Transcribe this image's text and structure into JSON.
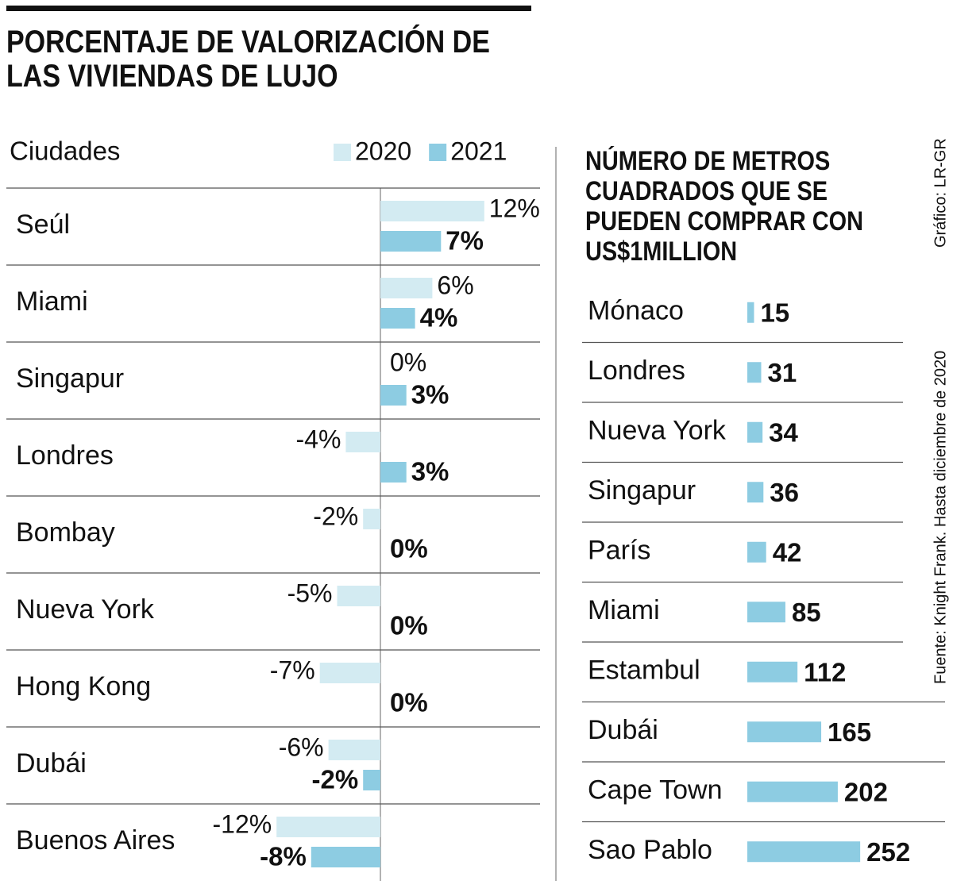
{
  "chart_data": [
    {
      "type": "bar",
      "title": "PORCENTAJE DE VALORIZACIÓN DE LAS VIVIENDAS DE LUJO",
      "category_header": "Ciudades",
      "categories": [
        "Seúl",
        "Miami",
        "Singapur",
        "Londres",
        "Bombay",
        "Nueva York",
        "Hong Kong",
        "Dubái",
        "Buenos Aires"
      ],
      "series": [
        {
          "name": "2020",
          "color": "#d3ebf2",
          "values": [
            12,
            6,
            0,
            -4,
            -2,
            -5,
            -7,
            -6,
            -12
          ],
          "value_labels": [
            "12%",
            "6%",
            "0%",
            "-4%",
            "-2%",
            "-5%",
            "-7%",
            "-6%",
            "-12%"
          ]
        },
        {
          "name": "2021",
          "color": "#8dcce2",
          "values": [
            7,
            4,
            3,
            3,
            0,
            0,
            0,
            -2,
            -8
          ],
          "value_labels": [
            "7%",
            "4%",
            "3%",
            "3%",
            "0%",
            "0%",
            "0%",
            "-2%",
            "-8%"
          ]
        }
      ]
    },
    {
      "type": "bar",
      "title": "NÚMERO DE METROS CUADRADOS QUE SE PUEDEN COMPRAR CON US$1MILLION",
      "categories": [
        "Mónaco",
        "Londres",
        "Nueva York",
        "Singapur",
        "París",
        "Miami",
        "Estambul",
        "Dubái",
        "Cape Town",
        "Sao Pablo"
      ],
      "values": [
        15,
        31,
        34,
        36,
        42,
        85,
        112,
        165,
        202,
        252
      ],
      "color": "#8dcce2"
    }
  ],
  "credit": "Gráfico: LR-GR",
  "source": "Fuente: Knight Frank. Hasta diciembre de 2020"
}
